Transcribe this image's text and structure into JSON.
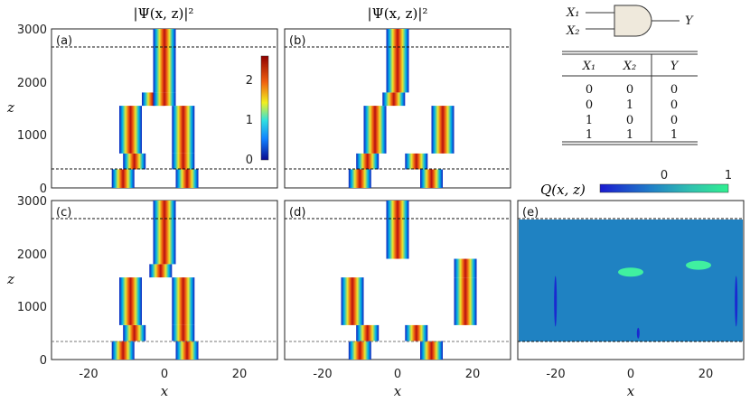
{
  "titles": {
    "psi_left": "|Ψ(x, z)|²",
    "psi_right": "|Ψ(x, z)|²",
    "q_label": "Q(x, z)"
  },
  "axes": {
    "xlabel": "x",
    "ylabel": "z",
    "xticks": [
      "-20",
      "0",
      "20"
    ],
    "zticks": [
      "0",
      "1000",
      "2000",
      "3000"
    ],
    "xlim": [
      -30,
      30
    ],
    "zlim": [
      0,
      3000
    ],
    "dashed_lines_z": [
      350,
      2650
    ]
  },
  "panels": [
    {
      "id": "a",
      "label": "(a)"
    },
    {
      "id": "b",
      "label": "(b)"
    },
    {
      "id": "c",
      "label": "(c)"
    },
    {
      "id": "d",
      "label": "(d)"
    },
    {
      "id": "e",
      "label": "(e)"
    }
  ],
  "colorbar_psi": {
    "ticks": [
      "0",
      "1",
      "2"
    ],
    "range": [
      0,
      2.6
    ]
  },
  "colorbar_q": {
    "ticks": [
      "0",
      "1"
    ],
    "range": [
      -0.3,
      1.1
    ]
  },
  "gate": {
    "inputs": [
      "X₁",
      "X₂"
    ],
    "output": "Y"
  },
  "truth_table": {
    "headers": [
      "X₁",
      "X₂",
      "Y"
    ],
    "rows": [
      [
        "0",
        "0",
        "0"
      ],
      [
        "0",
        "1",
        "0"
      ],
      [
        "1",
        "0",
        "0"
      ],
      [
        "1",
        "1",
        "1"
      ]
    ]
  },
  "chart_data": [
    {
      "type": "heatmap",
      "panel": "a",
      "beams": [
        {
          "z": [
            0,
            350
          ],
          "centers": [
            -11,
            6
          ]
        },
        {
          "z": [
            350,
            650
          ],
          "centers": [
            -8,
            5
          ]
        },
        {
          "z": [
            650,
            1550
          ],
          "centers": [
            -9,
            5
          ]
        },
        {
          "z": [
            1550,
            1800
          ],
          "centers": [
            -3,
            0
          ]
        },
        {
          "z": [
            1800,
            3000
          ],
          "centers": [
            0
          ]
        }
      ]
    },
    {
      "type": "heatmap",
      "panel": "b",
      "beams": [
        {
          "z": [
            0,
            350
          ],
          "centers": [
            -10,
            9
          ]
        },
        {
          "z": [
            350,
            650
          ],
          "centers": [
            -8,
            5
          ]
        },
        {
          "z": [
            650,
            1550
          ],
          "centers": [
            -6,
            12
          ]
        },
        {
          "z": [
            1550,
            1800
          ],
          "centers": [
            -1
          ]
        },
        {
          "z": [
            1800,
            3000
          ],
          "centers": [
            0
          ]
        }
      ]
    },
    {
      "type": "heatmap",
      "panel": "c",
      "beams": [
        {
          "z": [
            0,
            350
          ],
          "centers": [
            -11,
            6
          ]
        },
        {
          "z": [
            350,
            650
          ],
          "centers": [
            -8,
            5
          ]
        },
        {
          "z": [
            650,
            1550
          ],
          "centers": [
            -9,
            5
          ]
        },
        {
          "z": [
            1550,
            1800
          ],
          "centers": [
            -1
          ]
        },
        {
          "z": [
            1800,
            3000
          ],
          "centers": [
            0
          ]
        }
      ]
    },
    {
      "type": "heatmap",
      "panel": "d",
      "beams": [
        {
          "z": [
            0,
            350
          ],
          "centers": [
            -10,
            9
          ]
        },
        {
          "z": [
            350,
            650
          ],
          "centers": [
            -8,
            5
          ]
        },
        {
          "z": [
            650,
            1550
          ],
          "centers": [
            -12,
            18
          ]
        },
        {
          "z": [
            1550,
            1900
          ],
          "centers": [
            18
          ]
        },
        {
          "z": [
            1900,
            3000
          ],
          "centers": [
            0
          ]
        }
      ]
    },
    {
      "type": "heatmap",
      "panel": "e",
      "features": [
        {
          "x": 0,
          "z": 1650,
          "value": 1.0
        },
        {
          "x": 18,
          "z": 1780,
          "value": 0.7
        },
        {
          "x": -20,
          "z": 1100,
          "value": -0.3
        },
        {
          "x": 28,
          "z": 1100,
          "value": -0.3
        },
        {
          "x": 2,
          "z": 500,
          "value": -0.2
        }
      ]
    }
  ]
}
